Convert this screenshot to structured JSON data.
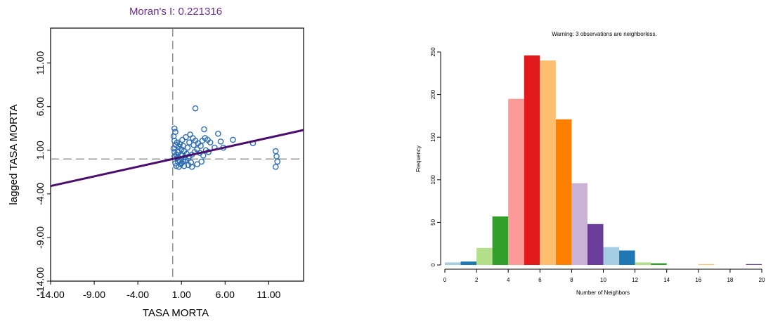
{
  "chart_data": [
    {
      "type": "scatter",
      "title": "Moran's I: 0.221316",
      "xlabel": "TASA MORTA",
      "ylabel": "lagged TASA MORTA",
      "xlim": [
        -14,
        15
      ],
      "ylim": [
        -14,
        15
      ],
      "x_ticks": [
        "-14.00",
        "-9.00",
        "-4.00",
        "1.00",
        "6.00",
        "11.00"
      ],
      "y_ticks": [
        "-14.00",
        "-9.00",
        "-4.00",
        "1.00",
        "6.00",
        "11.00"
      ],
      "x_tick_values": [
        -14,
        -9,
        -4,
        1,
        6,
        11
      ],
      "y_tick_values": [
        -14,
        -9,
        -4,
        1,
        6,
        11
      ],
      "mean_x": 0,
      "mean_y": 0,
      "regression": {
        "slope": 0.221316,
        "intercept": 0
      },
      "point_color": "#2e6db5",
      "line_color": "#4b0e6e",
      "title_color": "#6a2c8a",
      "points": [
        [
          0.2,
          0.3
        ],
        [
          0.5,
          0.1
        ],
        [
          0.8,
          -0.2
        ],
        [
          1.1,
          0.4
        ],
        [
          0.3,
          -0.5
        ],
        [
          0.6,
          0.8
        ],
        [
          1.4,
          0.2
        ],
        [
          0.9,
          -0.6
        ],
        [
          0.1,
          1.2
        ],
        [
          0.4,
          1.6
        ],
        [
          0.2,
          2.1
        ],
        [
          0.1,
          2.6
        ],
        [
          0.3,
          3.1
        ],
        [
          0.2,
          3.5
        ],
        [
          0.5,
          1.9
        ],
        [
          0.7,
          1.4
        ],
        [
          1.0,
          1.1
        ],
        [
          1.3,
          0.9
        ],
        [
          1.6,
          0.6
        ],
        [
          1.9,
          0.3
        ],
        [
          2.2,
          0.5
        ],
        [
          2.5,
          0.8
        ],
        [
          2.8,
          1.1
        ],
        [
          3.1,
          0.7
        ],
        [
          1.2,
          -0.3
        ],
        [
          1.5,
          -0.1
        ],
        [
          1.8,
          0.1
        ],
        [
          2.1,
          -0.4
        ],
        [
          0.6,
          -0.3
        ],
        [
          0.9,
          0.5
        ],
        [
          1.7,
          1.3
        ],
        [
          2.4,
          1.6
        ],
        [
          1.1,
          2.2
        ],
        [
          1.5,
          2.5
        ],
        [
          2.0,
          2.8
        ],
        [
          2.3,
          2.4
        ],
        [
          2.6,
          2.1
        ],
        [
          2.9,
          1.8
        ],
        [
          3.4,
          2.1
        ],
        [
          3.7,
          2.4
        ],
        [
          3.2,
          1.5
        ],
        [
          3.8,
          1.0
        ],
        [
          4.0,
          2.2
        ],
        [
          4.3,
          1.9
        ],
        [
          3.6,
          3.4
        ],
        [
          2.6,
          5.8
        ],
        [
          4.8,
          1.3
        ],
        [
          5.2,
          2.9
        ],
        [
          5.5,
          2.0
        ],
        [
          5.8,
          1.3
        ],
        [
          6.9,
          2.2
        ],
        [
          9.2,
          1.8
        ],
        [
          11.8,
          0.9
        ],
        [
          11.9,
          0.3
        ],
        [
          12.0,
          -0.3
        ],
        [
          11.8,
          -0.9
        ],
        [
          0.4,
          -0.8
        ],
        [
          0.7,
          -0.9
        ],
        [
          1.0,
          -0.5
        ],
        [
          1.3,
          -0.8
        ],
        [
          1.8,
          -0.7
        ],
        [
          2.2,
          -0.9
        ],
        [
          2.8,
          -0.6
        ],
        [
          3.3,
          -0.3
        ],
        [
          0.2,
          0.8
        ],
        [
          0.4,
          0.5
        ],
        [
          0.6,
          0.2
        ],
        [
          0.8,
          1.7
        ],
        [
          1.2,
          1.5
        ],
        [
          1.9,
          1.9
        ],
        [
          3.5,
          0.4
        ],
        [
          4.1,
          0.8
        ]
      ]
    },
    {
      "type": "bar",
      "title": "Warning: 3 observations are neighborless.",
      "xlabel": "Number of Neighbors",
      "ylabel": "Frequency",
      "xlim": [
        0,
        20
      ],
      "ylim": [
        0,
        250
      ],
      "x_ticks": [
        "0",
        "2",
        "4",
        "6",
        "8",
        "10",
        "12",
        "14",
        "16",
        "18",
        "20"
      ],
      "x_tick_values": [
        0,
        2,
        4,
        6,
        8,
        10,
        12,
        14,
        16,
        18,
        20
      ],
      "y_ticks": [
        "0",
        "50",
        "100",
        "150",
        "200",
        "250"
      ],
      "y_tick_values": [
        0,
        50,
        100,
        150,
        200,
        250
      ],
      "categories": [
        0,
        1,
        2,
        3,
        4,
        5,
        6,
        7,
        8,
        9,
        10,
        11,
        12,
        13,
        14,
        15,
        16,
        17,
        18,
        19
      ],
      "values": [
        3,
        4,
        20,
        57,
        195,
        246,
        240,
        171,
        96,
        48,
        21,
        17,
        3,
        2,
        0,
        0,
        1,
        0,
        0,
        1
      ],
      "colors": [
        "#a6cee3",
        "#1f78b4",
        "#b2df8a",
        "#33a02c",
        "#fb9a99",
        "#e31a1c",
        "#fdbf6f",
        "#ff7f00",
        "#cab2d6",
        "#6a3d9a",
        "#a6cee3",
        "#1f78b4",
        "#b2df8a",
        "#33a02c",
        "#fb9a99",
        "#e31a1c",
        "#fdbf6f",
        "#ff7f00",
        "#cab2d6",
        "#6a3d9a"
      ]
    }
  ]
}
